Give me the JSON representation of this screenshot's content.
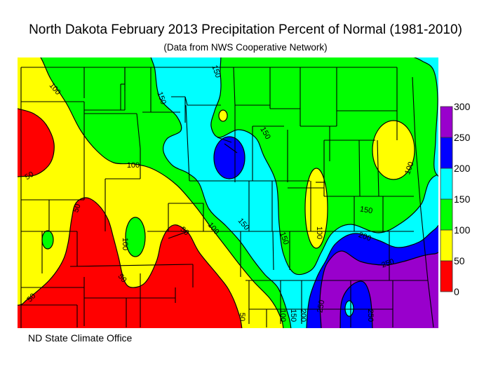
{
  "title": "North Dakota February 2013 Precipitation Percent of Normal (1981-2010)",
  "subtitle": "(Data from NWS Cooperative Network)",
  "footer": "ND State Climate Office",
  "legend": {
    "ticks": [
      "0",
      "50",
      "100",
      "150",
      "200",
      "250",
      "300"
    ],
    "bins": [
      {
        "range": "0-50",
        "color": "#ff0000"
      },
      {
        "range": "50-100",
        "color": "#ffff00"
      },
      {
        "range": "100-150",
        "color": "#00ff00"
      },
      {
        "range": "150-200",
        "color": "#00ffff"
      },
      {
        "range": "200-250",
        "color": "#0000ff"
      },
      {
        "range": "250-300",
        "color": "#9900cc"
      }
    ]
  },
  "contour_labels": [
    "100",
    "150",
    "150",
    "150",
    "100",
    "50",
    "50",
    "100",
    "50",
    "100",
    "150",
    "150",
    "100",
    "150",
    "200",
    "250",
    "100",
    "50",
    "50",
    "50",
    "100",
    "150",
    "200",
    "250",
    "250"
  ]
}
